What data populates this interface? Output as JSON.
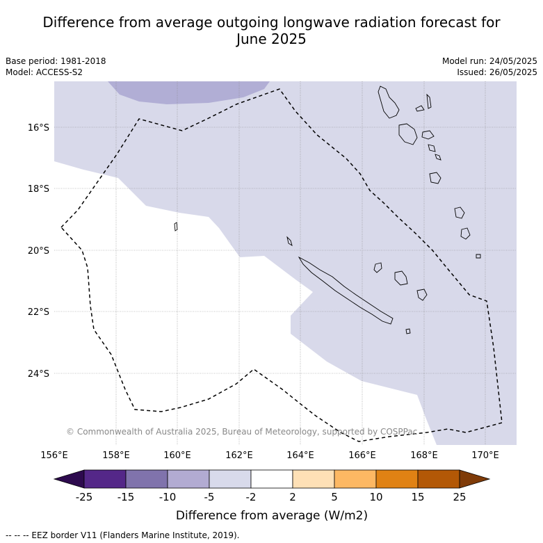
{
  "title_line1": "Difference from average outgoing longwave radiation forecast for",
  "title_line2": "June 2025",
  "base_period": "Base period: 1981-2018",
  "model": "Model: ACCESS-S2",
  "model_run": "Model run: 24/05/2025",
  "issued": "Issued: 26/05/2025",
  "copyright": "© Commonwealth of Australia 2025, Bureau of Meteorology, supported by COSPPac",
  "footer": "--  --  -- EEZ border V11 (Flanders Marine Institute, 2019).",
  "map": {
    "lon_labels": [
      "156°E",
      "158°E",
      "160°E",
      "162°E",
      "164°E",
      "166°E",
      "168°E",
      "170°E"
    ],
    "lat_labels": [
      "16°S",
      "18°S",
      "20°S",
      "22°S",
      "24°S"
    ],
    "colors": {
      "lightest_negative": "#d8d9ea",
      "light_negative": "#b1aed5",
      "neutral": "#ffffff",
      "eez_border": "#000000"
    }
  },
  "colorbar": {
    "ticks": [
      "-25",
      "-15",
      "-10",
      "-5",
      "-2",
      "2",
      "5",
      "10",
      "15",
      "25"
    ],
    "colors": [
      "#2d0a4e",
      "#542788",
      "#8073ac",
      "#b2abd2",
      "#d8daeb",
      "#ffffff",
      "#fee0b6",
      "#fdb863",
      "#e08214",
      "#b35806",
      "#7f3b08"
    ],
    "label": "Difference from average (W/m2)"
  }
}
